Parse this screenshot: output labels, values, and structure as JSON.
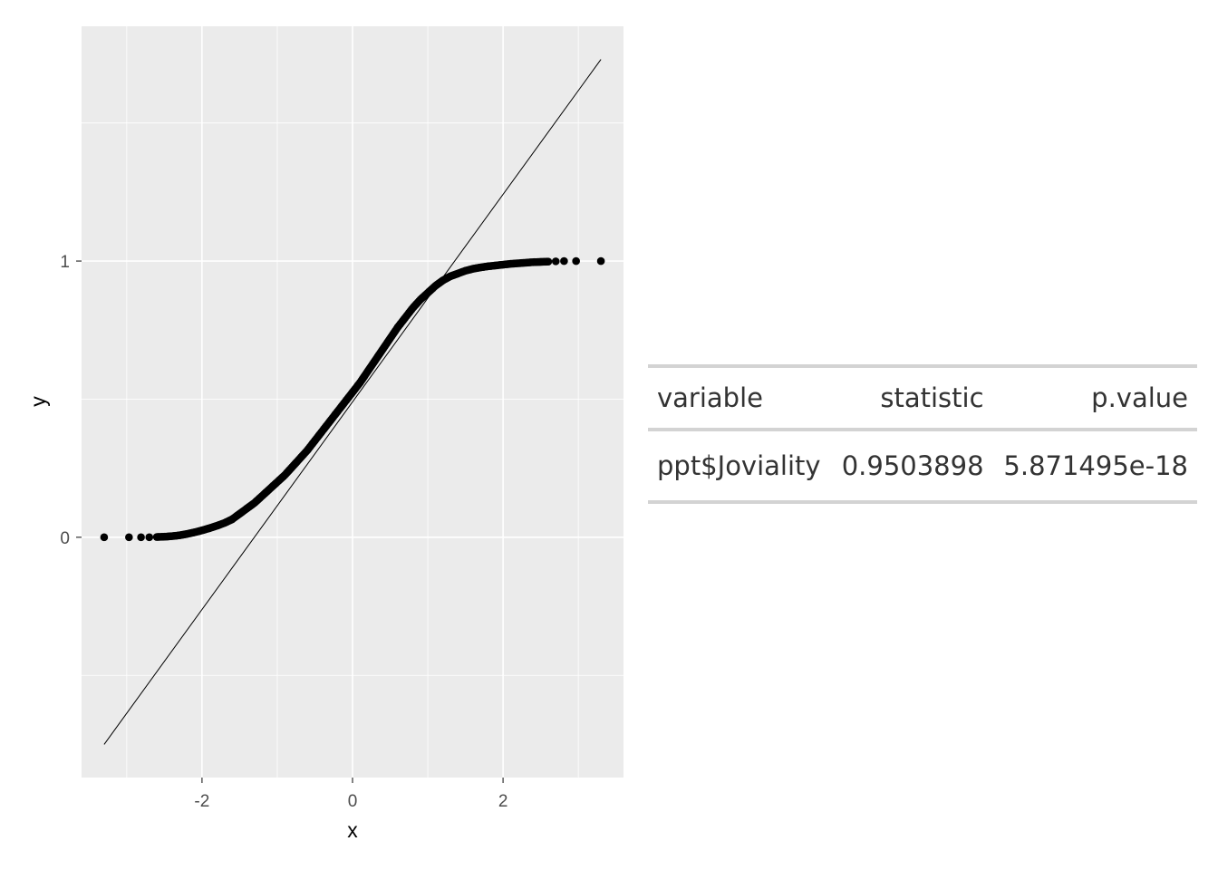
{
  "chart_data": {
    "type": "scatter",
    "title": "",
    "xlabel": "x",
    "ylabel": "y",
    "xlim": [
      -3.6,
      3.6
    ],
    "ylim": [
      -0.87,
      1.85
    ],
    "x_ticks": [
      -2,
      0,
      2
    ],
    "x_tick_labels": [
      "-2",
      "0",
      "2"
    ],
    "y_ticks": [
      0,
      1
    ],
    "y_tick_labels": [
      "0",
      "1"
    ],
    "grid": true,
    "background": "#ebebeb",
    "point_color": "#000000",
    "reference_line": {
      "x": [
        -3.3,
        3.3
      ],
      "y": [
        -0.75,
        1.73
      ]
    },
    "series": [
      {
        "x": [
          -3.3,
          -2.97,
          -2.81,
          -2.7,
          -2.6,
          -2.5,
          -2.4,
          -2.3,
          -2.2,
          -2.1,
          -2.0,
          -1.9,
          -1.8,
          -1.7,
          -1.6,
          -1.5,
          -1.4,
          -1.3,
          -1.2,
          -1.1,
          -1.0,
          -0.9,
          -0.8,
          -0.7,
          -0.6,
          -0.5,
          -0.4,
          -0.3,
          -0.2,
          -0.1,
          0.0,
          0.1,
          0.2,
          0.3,
          0.4,
          0.5,
          0.6,
          0.7,
          0.8,
          0.9,
          1.0,
          1.1,
          1.2,
          1.3,
          1.4,
          1.5,
          1.6,
          1.7,
          1.8,
          1.9,
          2.0,
          2.1,
          2.2,
          2.3,
          2.4,
          2.5,
          2.6,
          2.7,
          2.81,
          2.97,
          3.3
        ],
        "y": [
          0.0,
          0.0,
          0.0,
          0.0,
          0.001,
          0.002,
          0.004,
          0.007,
          0.012,
          0.018,
          0.025,
          0.033,
          0.042,
          0.052,
          0.065,
          0.085,
          0.105,
          0.125,
          0.15,
          0.175,
          0.2,
          0.225,
          0.255,
          0.285,
          0.315,
          0.35,
          0.385,
          0.42,
          0.455,
          0.49,
          0.525,
          0.56,
          0.6,
          0.64,
          0.68,
          0.72,
          0.76,
          0.795,
          0.83,
          0.86,
          0.885,
          0.91,
          0.93,
          0.945,
          0.955,
          0.965,
          0.972,
          0.977,
          0.981,
          0.984,
          0.987,
          0.99,
          0.992,
          0.994,
          0.996,
          0.997,
          0.998,
          0.999,
          1.0,
          1.0,
          1.0
        ]
      }
    ]
  },
  "table": {
    "headers": [
      "variable",
      "statistic",
      "p.value"
    ],
    "row": [
      "ppt$Joviality",
      "0.9503898",
      "5.871495e-18"
    ]
  }
}
